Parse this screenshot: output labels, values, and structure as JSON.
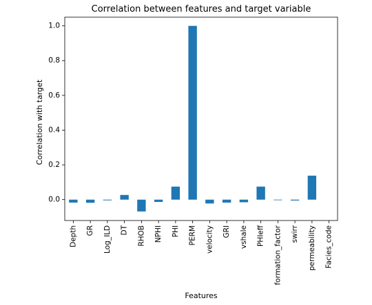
{
  "chart_data": {
    "type": "bar",
    "title": "Correlation between features and target variable",
    "xlabel": "Features",
    "ylabel": "Correlation with target",
    "categories": [
      "Depth",
      "GR",
      "Log_ILD",
      "DT",
      "RHOB",
      "NPHI",
      "PHI",
      "PERM",
      "velocity",
      "GRI",
      "vshale",
      "PHIeff",
      "formation_factor",
      "swirr",
      "permeability",
      "Facies_code"
    ],
    "values": [
      -0.017,
      -0.018,
      -0.004,
      0.027,
      -0.068,
      -0.013,
      0.075,
      1.0,
      -0.022,
      -0.017,
      -0.015,
      0.075,
      -0.003,
      -0.005,
      0.138,
      0.0
    ],
    "ylim": [
      -0.12,
      1.05
    ],
    "yticks": [
      0.0,
      0.2,
      0.4,
      0.6,
      0.8,
      1.0
    ],
    "ytick_labels": [
      "0.0",
      "0.2",
      "0.4",
      "0.6",
      "0.8",
      "1.0"
    ],
    "grid": false,
    "legend": "none",
    "bar_color": "#1f77b4"
  }
}
